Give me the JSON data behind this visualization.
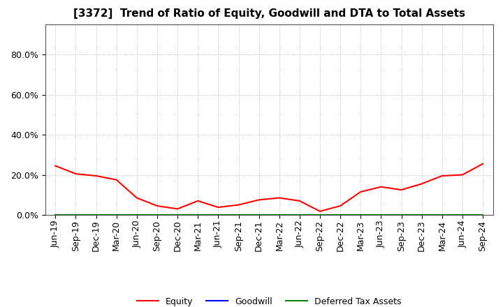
{
  "title": "[3372]  Trend of Ratio of Equity, Goodwill and DTA to Total Assets",
  "x_labels": [
    "Jun-19",
    "Sep-19",
    "Dec-19",
    "Mar-20",
    "Jun-20",
    "Sep-20",
    "Dec-20",
    "Mar-21",
    "Jun-21",
    "Sep-21",
    "Dec-21",
    "Mar-22",
    "Jun-22",
    "Sep-22",
    "Dec-22",
    "Mar-23",
    "Jun-23",
    "Sep-23",
    "Dec-23",
    "Mar-24",
    "Jun-24",
    "Sep-24"
  ],
  "equity": [
    0.245,
    0.205,
    0.195,
    0.175,
    0.085,
    0.045,
    0.03,
    0.07,
    0.038,
    0.05,
    0.075,
    0.085,
    0.07,
    0.018,
    0.045,
    0.115,
    0.14,
    0.125,
    0.155,
    0.195,
    0.2,
    0.255
  ],
  "goodwill": [
    0.0,
    0.0,
    0.0,
    0.0,
    0.0,
    0.0,
    0.0,
    0.0,
    0.0,
    0.0,
    0.0,
    0.0,
    0.0,
    0.0,
    0.0,
    0.0,
    0.0,
    0.0,
    0.0,
    0.0,
    0.0,
    0.0
  ],
  "dta": [
    0.0,
    0.0,
    0.0,
    0.0,
    0.0,
    0.0,
    0.0,
    0.0,
    0.0,
    0.0,
    0.0,
    0.0,
    0.0,
    0.0,
    0.0,
    0.0,
    0.0,
    0.0,
    0.0,
    0.0,
    0.0,
    0.0
  ],
  "equity_color": "#ff0000",
  "goodwill_color": "#0000ff",
  "dta_color": "#008000",
  "ylim": [
    0.0,
    0.95
  ],
  "yticks": [
    0.0,
    0.2,
    0.4,
    0.6,
    0.8
  ],
  "background_color": "#ffffff",
  "plot_bg_color": "#ffffff",
  "grid_color": "#aaaaaa",
  "title_fontsize": 11,
  "tick_fontsize": 9,
  "legend_labels": [
    "Equity",
    "Goodwill",
    "Deferred Tax Assets"
  ]
}
